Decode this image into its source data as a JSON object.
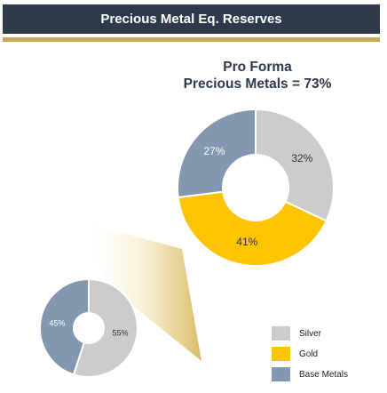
{
  "header": {
    "title": "Precious Metal Eq. Reserves"
  },
  "colors": {
    "silver": "#cccccc",
    "gold": "#fcc500",
    "base_metals": "#8497b0",
    "header_bg": "#2e3a4b",
    "gold_rule": "#c9a959"
  },
  "chart_data": [
    {
      "type": "pie",
      "title": "Pro Forma",
      "subtitle": "Precious Metals = 73%",
      "labels": [
        "Silver",
        "Gold",
        "Base Metals"
      ],
      "values": [
        32,
        41,
        27
      ],
      "value_labels": [
        "32%",
        "41%",
        "27%"
      ],
      "colors": [
        "#cccccc",
        "#fcc500",
        "#8497b0"
      ],
      "donut": true
    },
    {
      "type": "pie",
      "labels": [
        "Silver",
        "Base Metals"
      ],
      "values": [
        55,
        45
      ],
      "value_labels": [
        "55%",
        "45%"
      ],
      "colors": [
        "#cccccc",
        "#8497b0"
      ],
      "donut": true
    }
  ],
  "legend": {
    "placement": "bottom-right",
    "items": [
      {
        "label": "Silver",
        "color": "#cccccc"
      },
      {
        "label": "Gold",
        "color": "#fcc500"
      },
      {
        "label": "Base Metals",
        "color": "#8497b0"
      }
    ]
  }
}
